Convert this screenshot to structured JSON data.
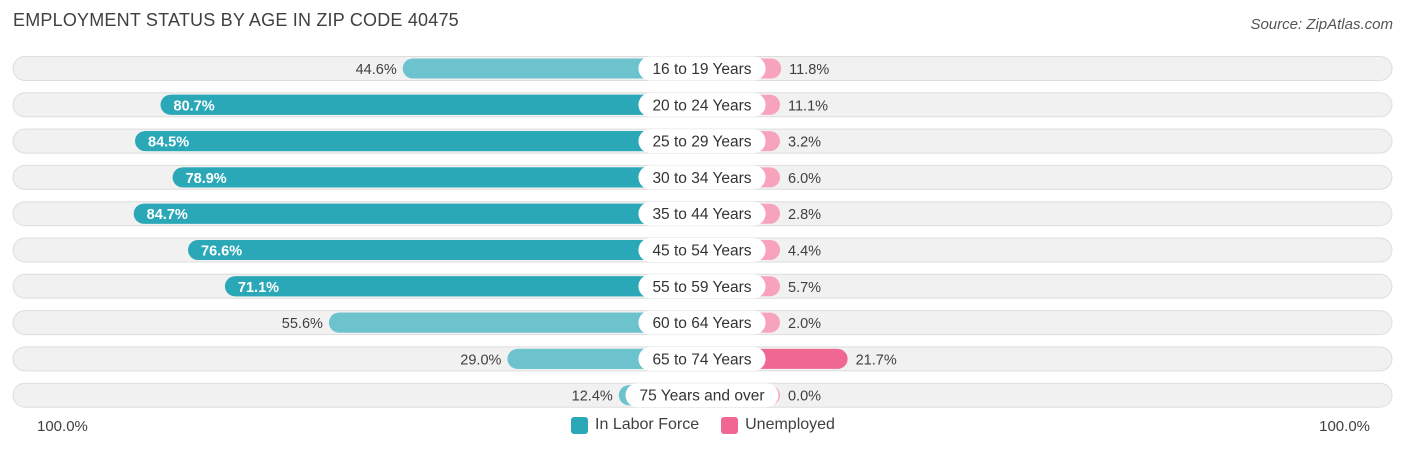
{
  "header": {
    "title": "EMPLOYMENT STATUS BY AGE IN ZIP CODE 40475",
    "source": "Source: ZipAtlas.com"
  },
  "axis": {
    "left_label": "100.0%",
    "right_label": "100.0%"
  },
  "legend": {
    "labor_force": "In Labor Force",
    "unemployed": "Unemployed"
  },
  "colors": {
    "labor_force_strong": "#2aa8b8",
    "labor_force_light": "#6cc3cd",
    "unemployed_strong": "#f06892",
    "unemployed_light": "#f7a3bc",
    "row_bg": "#f1f1f1",
    "row_border": "#dedede"
  },
  "chart_data": {
    "type": "bar",
    "orientation": "diverging-horizontal",
    "title": "EMPLOYMENT STATUS BY AGE IN ZIP CODE 40475",
    "categories": [
      "16 to 19 Years",
      "20 to 24 Years",
      "25 to 29 Years",
      "30 to 34 Years",
      "35 to 44 Years",
      "45 to 54 Years",
      "55 to 59 Years",
      "60 to 64 Years",
      "65 to 74 Years",
      "75 Years and over"
    ],
    "series": [
      {
        "name": "In Labor Force",
        "values": [
          44.6,
          80.7,
          84.5,
          78.9,
          84.7,
          76.6,
          71.1,
          55.6,
          29.0,
          12.4
        ],
        "labels": [
          "44.6%",
          "80.7%",
          "84.5%",
          "78.9%",
          "84.7%",
          "76.6%",
          "71.1%",
          "55.6%",
          "29.0%",
          "12.4%"
        ]
      },
      {
        "name": "Unemployed",
        "values": [
          11.8,
          11.1,
          3.2,
          6.0,
          2.8,
          4.4,
          5.7,
          2.0,
          21.7,
          0.0
        ],
        "labels": [
          "11.8%",
          "11.1%",
          "3.2%",
          "6.0%",
          "2.8%",
          "4.4%",
          "5.7%",
          "2.0%",
          "21.7%",
          "0.0%"
        ]
      }
    ],
    "xlim": [
      -100,
      100
    ],
    "legend_position": "bottom-center"
  }
}
